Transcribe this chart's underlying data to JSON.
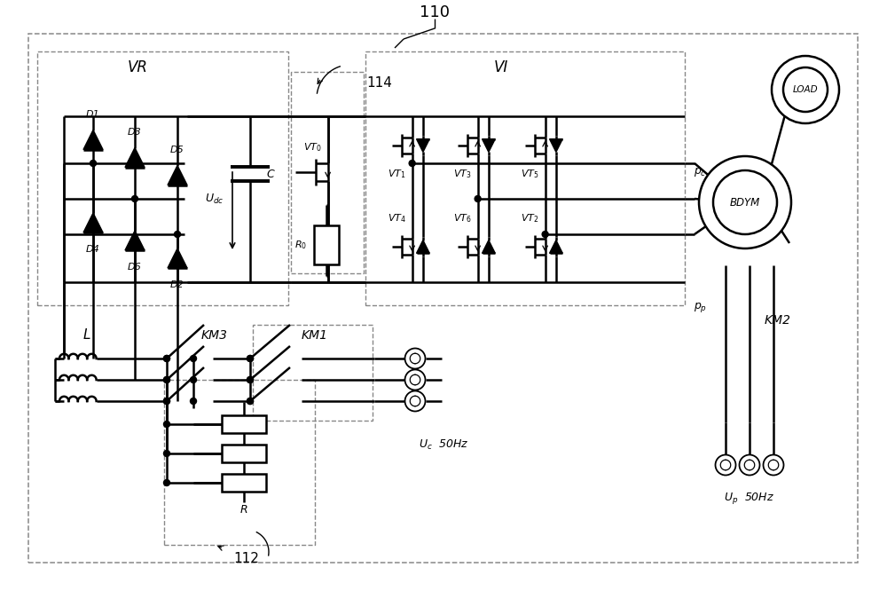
{
  "bg": "#ffffff",
  "lc": "#000000",
  "gc": "#888888",
  "lw": 1.8,
  "lw_med": 1.3,
  "lw_thin": 0.9,
  "labels": {
    "110": "110",
    "112": "112",
    "114": "114",
    "VR": "VR",
    "VI": "VI",
    "Udc": "$U_{dc}$",
    "C": "C",
    "R0": "$R_0$",
    "L": "L",
    "KM3": "KM3",
    "KM1": "KM1",
    "KM2": "KM2",
    "R": "R",
    "pc": "$p_c$",
    "pp": "$p_p$",
    "BDYM": "BDYM",
    "LOAD": "LOAD",
    "Uc": "$U_c$  50Hz",
    "Up": "$U_p$  50Hz",
    "D1": "D1",
    "D2": "D2",
    "D3": "D3",
    "D4": "D4",
    "D5": "D5",
    "D6": "D6",
    "VT0": "VT$_0$",
    "VT1": "VT$_1$",
    "VT2": "VT$_2$",
    "VT3": "VT$_3$",
    "VT4": "VT$_4$",
    "VT5": "VT$_5$",
    "VT6": "VT$_6$"
  }
}
